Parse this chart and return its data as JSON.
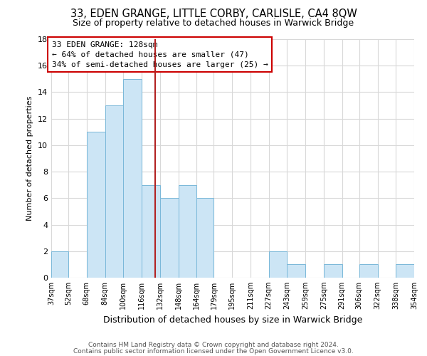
{
  "title": "33, EDEN GRANGE, LITTLE CORBY, CARLISLE, CA4 8QW",
  "subtitle": "Size of property relative to detached houses in Warwick Bridge",
  "xlabel": "Distribution of detached houses by size in Warwick Bridge",
  "ylabel": "Number of detached properties",
  "bar_color": "#cce5f5",
  "bar_edge_color": "#7ab8d9",
  "reference_line_x": 128,
  "reference_line_color": "#b22222",
  "annotation_title": "33 EDEN GRANGE: 128sqm",
  "annotation_line1": "← 64% of detached houses are smaller (47)",
  "annotation_line2": "34% of semi-detached houses are larger (25) →",
  "bins": [
    37,
    52,
    68,
    84,
    100,
    116,
    132,
    148,
    164,
    179,
    195,
    211,
    227,
    243,
    259,
    275,
    291,
    306,
    322,
    338,
    354
  ],
  "counts": [
    2,
    0,
    11,
    13,
    15,
    7,
    6,
    7,
    6,
    0,
    0,
    0,
    2,
    1,
    0,
    1,
    0,
    1,
    0,
    1
  ],
  "tick_labels": [
    "37sqm",
    "52sqm",
    "68sqm",
    "84sqm",
    "100sqm",
    "116sqm",
    "132sqm",
    "148sqm",
    "164sqm",
    "179sqm",
    "195sqm",
    "211sqm",
    "227sqm",
    "243sqm",
    "259sqm",
    "275sqm",
    "291sqm",
    "306sqm",
    "322sqm",
    "338sqm",
    "354sqm"
  ],
  "ylim": [
    0,
    18
  ],
  "yticks": [
    0,
    2,
    4,
    6,
    8,
    10,
    12,
    14,
    16,
    18
  ],
  "footer1": "Contains HM Land Registry data © Crown copyright and database right 2024.",
  "footer2": "Contains public sector information licensed under the Open Government Licence v3.0.",
  "background_color": "#ffffff",
  "grid_color": "#d8d8d8"
}
